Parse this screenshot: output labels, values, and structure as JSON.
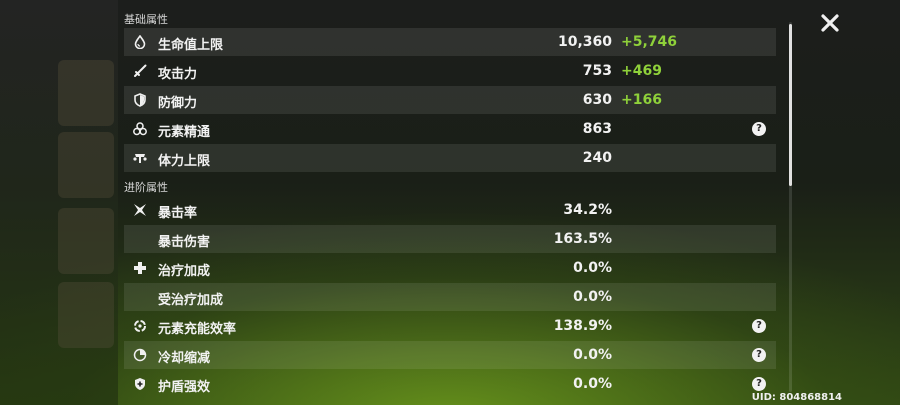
{
  "sections": {
    "basic": "基础属性",
    "advanced": "进阶属性"
  },
  "stats": [
    {
      "label": "生命值上限",
      "value": "10,360",
      "bonus": "+5,746",
      "icon": "hp-drop-icon",
      "help": false
    },
    {
      "label": "攻击力",
      "value": "753",
      "bonus": "+469",
      "icon": "sword-icon",
      "help": false
    },
    {
      "label": "防御力",
      "value": "630",
      "bonus": "+166",
      "icon": "shield-icon",
      "help": false
    },
    {
      "label": "元素精通",
      "value": "863",
      "bonus": "",
      "icon": "elemental-mastery-icon",
      "help": true
    },
    {
      "label": "体力上限",
      "value": "240",
      "bonus": "",
      "icon": "stamina-icon",
      "help": false
    }
  ],
  "advanced_stats": [
    {
      "label": "暴击率",
      "value": "34.2%",
      "icon": "crit-icon",
      "help": false
    },
    {
      "label": "暴击伤害",
      "value": "163.5%",
      "icon": "",
      "help": false
    },
    {
      "label": "治疗加成",
      "value": "0.0%",
      "icon": "healing-cross-icon",
      "help": false
    },
    {
      "label": "受治疗加成",
      "value": "0.0%",
      "icon": "",
      "help": false
    },
    {
      "label": "元素充能效率",
      "value": "138.9%",
      "icon": "energy-recharge-icon",
      "help": true
    },
    {
      "label": "冷却缩减",
      "value": "0.0%",
      "icon": "cooldown-icon",
      "help": true
    },
    {
      "label": "护盾强效",
      "value": "0.0%",
      "icon": "shield-strength-icon",
      "help": true
    }
  ],
  "help_glyph": "?",
  "uid": "UID: 804868814",
  "colors": {
    "bonus": "#8fd13a",
    "row_shade": "rgba(255,255,255,0.09)"
  }
}
